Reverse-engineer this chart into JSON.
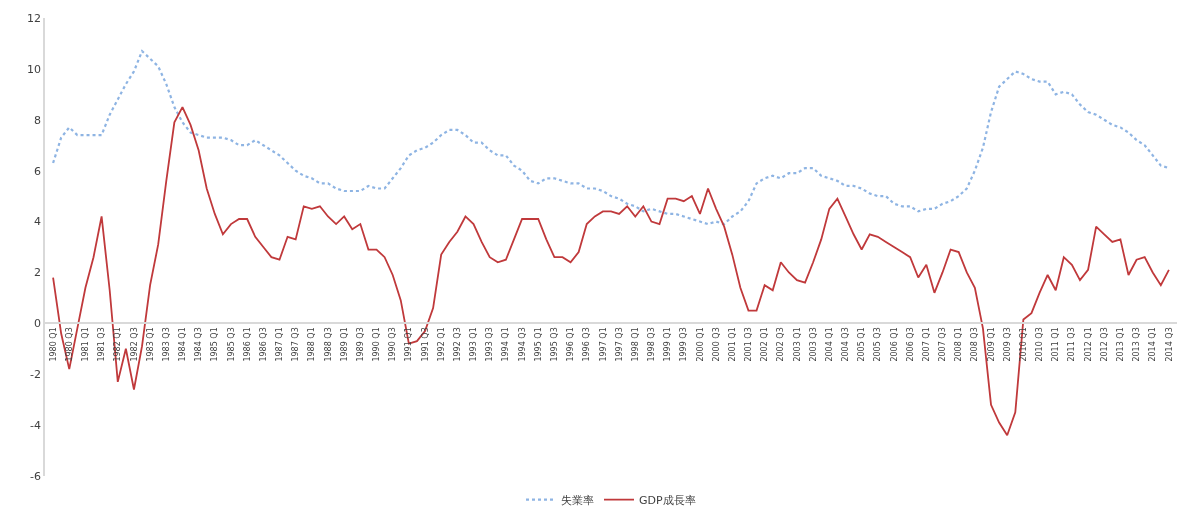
{
  "chart_data": {
    "type": "line",
    "categories": [
      "1980 Q1",
      null,
      "1980 Q3",
      null,
      "1981 Q1",
      null,
      "1981 Q3",
      null,
      "1982 Q1",
      null,
      "1982 Q3",
      null,
      "1983 Q1",
      null,
      "1983 Q3",
      null,
      "1984 Q1",
      null,
      "1984 Q3",
      null,
      "1985 Q1",
      null,
      "1985 Q3",
      null,
      "1986 Q1",
      null,
      "1986 Q3",
      null,
      "1987 Q1",
      null,
      "1987 Q3",
      null,
      "1988 Q1",
      null,
      "1988 Q3",
      null,
      "1989 Q1",
      null,
      "1989 Q3",
      null,
      "1990 Q1",
      null,
      "1990 Q3",
      null,
      "1991 Q1",
      null,
      "1991 Q3",
      null,
      "1992 Q1",
      null,
      "1992 Q3",
      null,
      "1993 Q1",
      null,
      "1993 Q3",
      null,
      "1994 Q1",
      null,
      "1994 Q3",
      null,
      "1995 Q1",
      null,
      "1995 Q3",
      null,
      "1996 Q1",
      null,
      "1996 Q3",
      null,
      "1997 Q1",
      null,
      "1997 Q3",
      null,
      "1998 Q1",
      null,
      "1998 Q3",
      null,
      "1999 Q1",
      null,
      "1999 Q3",
      null,
      "2000 Q1",
      null,
      "2000 Q3",
      null,
      "2001 Q1",
      null,
      "2001 Q3",
      null,
      "2002 Q1",
      null,
      "2002 Q3",
      null,
      "2003 Q1",
      null,
      "2003 Q3",
      null,
      "2004 Q1",
      null,
      "2004 Q3",
      null,
      "2005 Q1",
      null,
      "2005 Q3",
      null,
      "2006 Q1",
      null,
      "2006 Q3",
      null,
      "2007 Q1",
      null,
      "2007 Q3",
      null,
      "2008 Q1",
      null,
      "2008 Q3",
      null,
      "2009 Q1",
      null,
      "2009 Q3",
      null,
      "2010 Q1",
      null,
      "2010 Q3",
      null,
      "2011 Q1",
      null,
      "2011 Q3",
      null,
      "2012 Q1",
      null,
      "2012 Q3",
      null,
      "2013 Q1",
      null,
      "2013 Q3",
      null,
      "2014 Q1",
      null,
      "2014 Q3"
    ],
    "series": [
      {
        "name": "失業率",
        "color": "#8eb4e3",
        "line_style": "dotted",
        "values": [
          6.3,
          7.3,
          7.7,
          7.4,
          7.4,
          7.4,
          7.4,
          8.2,
          8.8,
          9.4,
          9.9,
          10.7,
          10.4,
          10.1,
          9.4,
          8.5,
          7.9,
          7.5,
          7.4,
          7.3,
          7.3,
          7.3,
          7.2,
          7.0,
          7.0,
          7.2,
          7.0,
          6.8,
          6.6,
          6.3,
          6.0,
          5.8,
          5.7,
          5.5,
          5.5,
          5.3,
          5.2,
          5.2,
          5.2,
          5.4,
          5.3,
          5.3,
          5.7,
          6.1,
          6.6,
          6.8,
          6.9,
          7.1,
          7.4,
          7.6,
          7.6,
          7.4,
          7.1,
          7.1,
          6.8,
          6.6,
          6.6,
          6.2,
          6.0,
          5.6,
          5.5,
          5.7,
          5.7,
          5.6,
          5.5,
          5.5,
          5.3,
          5.3,
          5.2,
          5.0,
          4.9,
          4.7,
          4.6,
          4.4,
          4.5,
          4.4,
          4.3,
          4.3,
          4.2,
          4.1,
          4.0,
          3.9,
          4.0,
          3.9,
          4.2,
          4.4,
          4.8,
          5.5,
          5.7,
          5.8,
          5.7,
          5.9,
          5.9,
          6.1,
          6.1,
          5.8,
          5.7,
          5.6,
          5.4,
          5.4,
          5.3,
          5.1,
          5.0,
          5.0,
          4.7,
          4.6,
          4.6,
          4.4,
          4.5,
          4.5,
          4.7,
          4.8,
          5.0,
          5.3,
          6.0,
          6.9,
          8.3,
          9.3,
          9.6,
          9.9,
          9.8,
          9.6,
          9.5,
          9.5,
          9.0,
          9.1,
          9.0,
          8.6,
          8.3,
          8.2,
          8.0,
          7.8,
          7.7,
          7.5,
          7.2,
          7.0,
          6.6,
          6.2,
          6.1
        ]
      },
      {
        "name": "GDP成長率",
        "color": "#c0393b",
        "line_style": "solid",
        "values": [
          1.8,
          -0.4,
          -1.8,
          -0.2,
          1.4,
          2.6,
          4.2,
          1.3,
          -2.3,
          -1.0,
          -2.6,
          -0.9,
          1.5,
          3.1,
          5.6,
          7.9,
          8.5,
          7.8,
          6.8,
          5.3,
          4.3,
          3.5,
          3.9,
          4.1,
          4.1,
          3.4,
          3.0,
          2.6,
          2.5,
          3.4,
          3.3,
          4.6,
          4.5,
          4.6,
          4.2,
          3.9,
          4.2,
          3.7,
          3.9,
          2.9,
          2.9,
          2.6,
          1.9,
          0.9,
          -0.8,
          -0.7,
          -0.3,
          0.6,
          2.7,
          3.2,
          3.6,
          4.2,
          3.9,
          3.2,
          2.6,
          2.4,
          2.5,
          3.3,
          4.1,
          4.1,
          4.1,
          3.3,
          2.6,
          2.6,
          2.4,
          2.8,
          3.9,
          4.2,
          4.4,
          4.4,
          4.3,
          4.6,
          4.2,
          4.6,
          4.0,
          3.9,
          4.9,
          4.9,
          4.8,
          5.0,
          4.3,
          5.3,
          4.5,
          3.8,
          2.7,
          1.4,
          0.5,
          0.5,
          1.5,
          1.3,
          2.4,
          2.0,
          1.7,
          1.6,
          2.4,
          3.3,
          4.5,
          4.9,
          4.2,
          3.5,
          2.9,
          3.5,
          3.4,
          3.2,
          3.0,
          2.8,
          2.6,
          1.8,
          2.3,
          1.2,
          2.0,
          2.9,
          2.8,
          2.0,
          1.4,
          -0.2,
          -3.2,
          -3.9,
          -4.4,
          -3.5,
          0.15,
          0.4,
          1.2,
          1.9,
          1.3,
          2.6,
          2.3,
          1.7,
          2.1,
          3.8,
          3.5,
          3.2,
          3.3,
          1.9,
          2.5,
          2.6,
          2.0,
          1.5,
          2.1
        ]
      }
    ],
    "ylim": [
      -6,
      12
    ],
    "yticks": [
      -6,
      -4,
      -2,
      0,
      2,
      4,
      6,
      8,
      10,
      12
    ],
    "legend": "bottom",
    "marker": "none"
  }
}
